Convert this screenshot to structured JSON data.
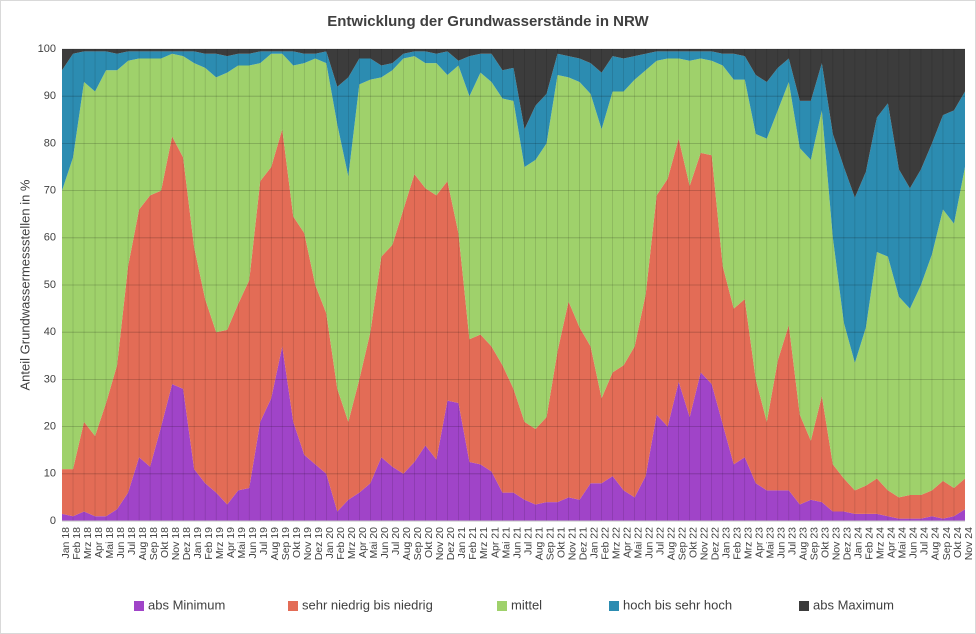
{
  "chart_data": {
    "type": "stacked_area",
    "title": "Entwicklung der Grundwasserstände in NRW",
    "y_label": "Anteil Grundwassermessstellen in %",
    "categories": [
      "Jan 18",
      "Feb 18",
      "Mrz 18",
      "Apr 18",
      "Mai 18",
      "Jun 18",
      "Jul 18",
      "Aug 18",
      "Sep 18",
      "Okt 18",
      "Nov 18",
      "Dez 18",
      "Jan 19",
      "Feb 19",
      "Mrz 19",
      "Apr 19",
      "Mai 19",
      "Jun 19",
      "Jul 19",
      "Aug 19",
      "Sep 19",
      "Okt 19",
      "Nov 19",
      "Dez 19",
      "Jan 20",
      "Feb 20",
      "Mrz 20",
      "Apr 20",
      "Mai 20",
      "Jun 20",
      "Jul 20",
      "Aug 20",
      "Sep 20",
      "Okt 20",
      "Nov 20",
      "Dez 20",
      "Jan 21",
      "Feb 21",
      "Mrz 21",
      "Apr 21",
      "Mai 21",
      "Jun 21",
      "Jul 21",
      "Aug 21",
      "Sep 21",
      "Okt 21",
      "Nov 21",
      "Dez 21",
      "Jan 22",
      "Feb 22",
      "Mrz 22",
      "Apr 22",
      "Mai 22",
      "Jun 22",
      "Jul 22",
      "Aug 22",
      "Sep 22",
      "Okt 22",
      "Nov 22",
      "Dez 22",
      "Jan 23",
      "Feb 23",
      "Mrz 23",
      "Apr 23",
      "Mai 23",
      "Jun 23",
      "Jul 23",
      "Aug 23",
      "Sep 23",
      "Okt 23",
      "Nov 23",
      "Dez 23",
      "Jan 24",
      "Feb 24",
      "Mrz 24",
      "Apr 24",
      "Mai 24",
      "Jun 24",
      "Jul 24",
      "Aug 24",
      "Sep 24",
      "Okt 24",
      "Nov 24"
    ],
    "series": [
      {
        "name": "abs Minimum",
        "color": "#a044c8",
        "values": [
          1.5,
          1,
          2,
          1,
          1,
          2.5,
          6,
          13.5,
          11.5,
          20,
          29,
          28,
          11,
          8,
          6,
          3.5,
          6.5,
          7,
          21,
          26,
          37,
          21,
          14,
          12,
          10,
          2,
          4.5,
          6,
          8,
          13.5,
          11.5,
          10,
          12.5,
          16,
          13,
          25.5,
          25,
          12.5,
          12,
          10.5,
          6,
          6,
          4.5,
          3.5,
          4,
          4,
          5,
          4.5,
          8,
          8,
          9.5,
          6.5,
          5,
          9.5,
          22.5,
          20,
          29.5,
          22,
          31.5,
          29,
          20.5,
          12,
          13.5,
          8,
          6.5,
          6.5,
          6.5,
          3.5,
          4.5,
          4,
          2,
          2,
          1.5,
          1.5,
          1.5,
          1,
          0.5,
          0.5,
          0.5,
          1,
          0.5,
          1,
          2.5
        ]
      },
      {
        "name": "sehr niedrig bis niedrig",
        "color": "#e36c56",
        "values": [
          9.5,
          10,
          19,
          17,
          24,
          30.5,
          48,
          52.5,
          57.5,
          50,
          52.5,
          49,
          47,
          39,
          34,
          37,
          39.5,
          44,
          51,
          49,
          46,
          43.5,
          47,
          38,
          34,
          26,
          16.5,
          24,
          32,
          42.5,
          47,
          56,
          61,
          54.5,
          56,
          46.5,
          36,
          26,
          27.5,
          26.5,
          27,
          22,
          16.5,
          16,
          18,
          32,
          41.5,
          36.5,
          29,
          18,
          22,
          26.5,
          32,
          38.5,
          46.5,
          52.5,
          51.5,
          49,
          46.5,
          48.5,
          33.5,
          33,
          33.5,
          22,
          14.5,
          27.5,
          35,
          19,
          12.5,
          22.5,
          10,
          7,
          5,
          6,
          7.5,
          5.5,
          4.5,
          5,
          5,
          5.5,
          8,
          6,
          6.5
        ]
      },
      {
        "name": "mittel",
        "color": "#9fd16b",
        "values": [
          59,
          66,
          72,
          73,
          70.5,
          62.5,
          43.5,
          32,
          29,
          28,
          17.5,
          21.5,
          39,
          49,
          54,
          54.5,
          50.5,
          45.5,
          25,
          24,
          16,
          32,
          36,
          48,
          53,
          56,
          52,
          62.5,
          53.5,
          38,
          37,
          32,
          25,
          26.5,
          28,
          22.5,
          35.5,
          51.5,
          55.5,
          56,
          56.5,
          61,
          54,
          57,
          58,
          58.5,
          47.5,
          52,
          53.5,
          57,
          59.5,
          58,
          56.5,
          47.5,
          28.5,
          25.5,
          17,
          26.5,
          20,
          20,
          42.5,
          48.5,
          46.5,
          52,
          60,
          53,
          51.5,
          56.5,
          59.5,
          60.5,
          48,
          33,
          27,
          33.5,
          48,
          49.5,
          42.5,
          39.5,
          44.5,
          50,
          57.5,
          56,
          66
        ]
      },
      {
        "name": "hoch bis sehr hoch",
        "color": "#2c8cb1",
        "values": [
          25.5,
          22,
          6.5,
          8.5,
          4,
          3.5,
          2,
          1.5,
          1.5,
          1.5,
          0.5,
          1,
          2.5,
          3,
          5,
          3.5,
          2.5,
          2.5,
          2.5,
          0.5,
          0.5,
          3,
          2,
          1,
          2.5,
          8,
          21,
          5.5,
          4.5,
          2.5,
          1.5,
          1,
          1,
          2.5,
          2,
          5,
          1,
          8.5,
          4,
          6,
          6,
          7,
          8,
          11.5,
          10.5,
          4.5,
          4.5,
          5,
          6.5,
          12,
          7.5,
          7,
          5,
          3.5,
          2,
          1.5,
          1.5,
          2,
          1.5,
          2,
          2.5,
          5.5,
          5,
          12.5,
          12,
          9,
          5,
          10,
          12.5,
          10,
          22,
          33,
          35,
          33,
          28.5,
          32.5,
          27,
          25.5,
          24.5,
          23.5,
          20,
          24,
          16
        ]
      },
      {
        "name": "abs Maximum",
        "color": "#3c3c3c",
        "values": [
          4.5,
          1,
          0.5,
          0.5,
          0.5,
          1,
          0.5,
          0.5,
          0.5,
          0.5,
          0.5,
          0.5,
          0.5,
          1,
          1,
          1.5,
          1,
          1,
          0.5,
          0.5,
          0.5,
          0.5,
          1,
          1,
          0.5,
          8,
          6,
          2,
          2,
          3.5,
          3,
          1,
          0.5,
          0.5,
          1,
          0.5,
          2.5,
          1.5,
          1,
          1,
          4.5,
          4,
          17,
          12,
          9.5,
          1,
          1.5,
          2,
          3,
          5,
          1.5,
          2,
          1.5,
          1,
          0.5,
          0.5,
          0.5,
          0.5,
          0.5,
          0.5,
          1,
          1,
          1.5,
          5.5,
          7,
          4,
          2,
          11,
          11,
          3,
          18,
          25,
          31.5,
          26,
          14.5,
          11.5,
          25.5,
          29.5,
          25.5,
          20,
          14,
          13,
          9
        ]
      }
    ],
    "ylim": [
      0,
      100
    ],
    "yticks": [
      0,
      10,
      20,
      30,
      40,
      50,
      60,
      70,
      80,
      90,
      100
    ],
    "grid": true,
    "legend": "bottom"
  }
}
